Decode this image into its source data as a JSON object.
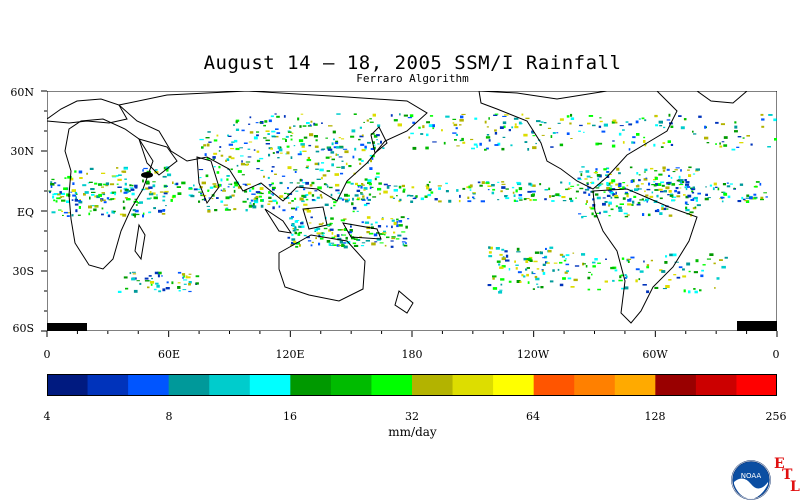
{
  "title": "August 14 – 18, 2005 SSM/I Rainfall",
  "subtitle": "Ferraro Algorithm",
  "lat_labels": [
    "60N",
    "30N",
    "EQ",
    "30S",
    "60S"
  ],
  "lon_labels": [
    "0",
    "60E",
    "120E",
    "180",
    "120W",
    "60W",
    "0"
  ],
  "colorbar": {
    "colors": [
      "#001a80",
      "#0033bb",
      "#0055ff",
      "#00999a",
      "#00cccc",
      "#00ffff",
      "#009900",
      "#00bb00",
      "#00ff00",
      "#b3b300",
      "#dddd00",
      "#ffff00",
      "#ff5500",
      "#ff8000",
      "#ffaa00",
      "#990000",
      "#cc0000",
      "#ff0000"
    ],
    "tick_labels": [
      "4",
      "8",
      "16",
      "32",
      "64",
      "128",
      "256"
    ],
    "unit": "mm/day"
  },
  "logo": {
    "text": "NOAA",
    "lab_letters": [
      "E",
      "T",
      "L"
    ]
  }
}
